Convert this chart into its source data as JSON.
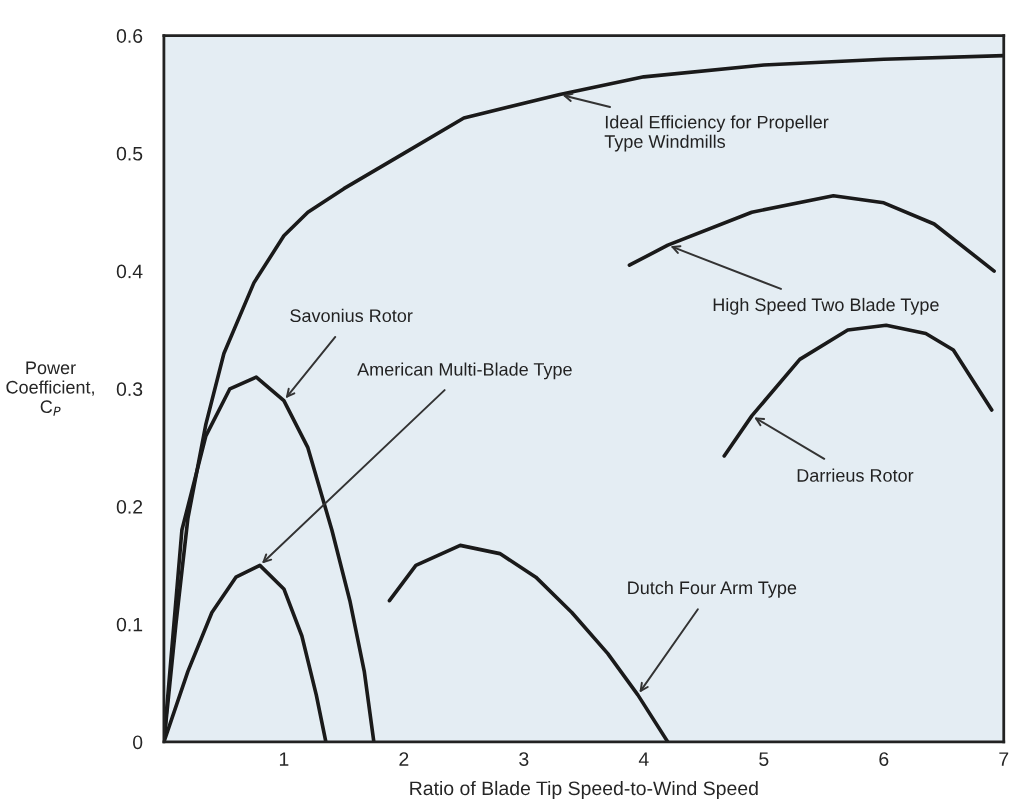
{
  "chart_data": {
    "type": "line",
    "xlabel": "Ratio of Blade Tip Speed-to-Wind Speed",
    "ylabel": "Power\nCoefficient,\nC$_{P}$",
    "xlim": [
      0,
      7
    ],
    "xticks": [
      1,
      2,
      3,
      4,
      5,
      6,
      7
    ],
    "ylim": [
      0,
      0.6
    ],
    "yticks": [
      0,
      0.1,
      0.2,
      0.3,
      0.4,
      0.5,
      0.6
    ],
    "grid": false,
    "legend": false,
    "marker": "none",
    "line_style": "solid",
    "series": [
      {
        "name": "Ideal Efficiency for Propeller\nType Windmills",
        "color": "#1a1a1a",
        "x": [
          0,
          0.1,
          0.2,
          0.35,
          0.5,
          0.75,
          1,
          1.2,
          1.5,
          2,
          2.5,
          3.3,
          4,
          5,
          6,
          7
        ],
        "values": [
          0,
          0.1,
          0.19,
          0.27,
          0.33,
          0.39,
          0.43,
          0.45,
          0.47,
          0.5,
          0.53,
          0.55,
          0.565,
          0.575,
          0.58,
          0.583
        ]
      },
      {
        "name": "Savonius Rotor",
        "color": "#1a1a1a",
        "x": [
          0,
          0.15,
          0.35,
          0.55,
          0.77,
          1,
          1.2,
          1.4,
          1.55,
          1.67,
          1.75
        ],
        "values": [
          0,
          0.18,
          0.26,
          0.3,
          0.31,
          0.29,
          0.25,
          0.18,
          0.12,
          0.06,
          0
        ]
      },
      {
        "name": "American Multi-Blade Type",
        "color": "#1a1a1a",
        "x": [
          0,
          0.2,
          0.4,
          0.6,
          0.8,
          1.0,
          1.15,
          1.27,
          1.35
        ],
        "values": [
          0,
          0.06,
          0.11,
          0.14,
          0.15,
          0.13,
          0.09,
          0.04,
          0
        ]
      },
      {
        "name": "Dutch Four Arm Type",
        "color": "#1a1a1a",
        "x": [
          1.88,
          2.1,
          2.47,
          2.8,
          3.1,
          3.4,
          3.7,
          3.95,
          4.2
        ],
        "values": [
          0.12,
          0.15,
          0.167,
          0.16,
          0.14,
          0.11,
          0.075,
          0.04,
          0
        ]
      },
      {
        "name": "High Speed Two Blade Type",
        "color": "#1a1a1a",
        "x": [
          3.88,
          4.2,
          4.9,
          5.58,
          6.0,
          6.42,
          6.92
        ],
        "values": [
          0.405,
          0.422,
          0.45,
          0.464,
          0.458,
          0.44,
          0.4
        ]
      },
      {
        "name": "Darrieus Rotor",
        "color": "#1a1a1a",
        "x": [
          4.67,
          4.9,
          5.3,
          5.7,
          6.02,
          6.35,
          6.58,
          6.9
        ],
        "values": [
          0.243,
          0.277,
          0.325,
          0.35,
          0.354,
          0.347,
          0.333,
          0.282
        ]
      }
    ]
  }
}
